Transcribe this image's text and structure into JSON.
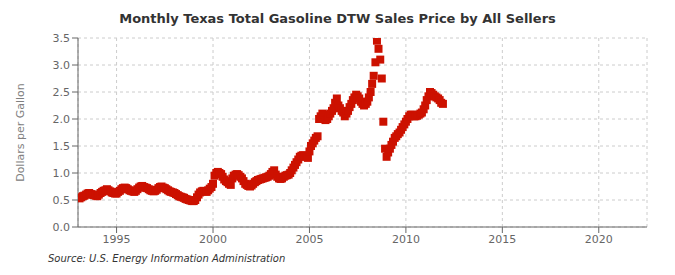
{
  "chart_data": {
    "type": "scatter",
    "title": "Monthly Texas Total Gasoline DTW Sales Price by All Sellers",
    "y_label": "Dollars per Gallon",
    "annotations": [
      "Source: U.S. Energy Information Administration"
    ],
    "color": "#cc1100",
    "marker": "square",
    "grid": true,
    "xlim": [
      1993.0,
      2022.5
    ],
    "ylim": [
      0.0,
      3.5
    ],
    "xticks": [
      1995,
      2000,
      2005,
      2010,
      2015,
      2020
    ],
    "yticks": [
      {
        "value": 0.0,
        "label": "0.0"
      },
      0.5,
      {
        "value": 1.0,
        "label": "1.0"
      },
      1.5,
      {
        "value": 2.0,
        "label": "2.0"
      },
      2.5,
      {
        "value": 3.0,
        "label": "3.0"
      },
      3.5
    ],
    "x": [
      1993.08,
      1993.17,
      1993.25,
      1993.33,
      1993.42,
      1993.5,
      1993.58,
      1993.67,
      1993.75,
      1993.83,
      1993.92,
      1994.0,
      1994.08,
      1994.17,
      1994.25,
      1994.33,
      1994.42,
      1994.5,
      1994.58,
      1994.67,
      1994.75,
      1994.83,
      1994.92,
      1995.0,
      1995.08,
      1995.17,
      1995.25,
      1995.33,
      1995.42,
      1995.5,
      1995.58,
      1995.67,
      1995.75,
      1995.83,
      1995.92,
      1996.0,
      1996.08,
      1996.17,
      1996.25,
      1996.33,
      1996.42,
      1996.5,
      1996.58,
      1996.67,
      1996.75,
      1996.83,
      1996.92,
      1997.0,
      1997.08,
      1997.17,
      1997.25,
      1997.33,
      1997.42,
      1997.5,
      1997.58,
      1997.67,
      1997.75,
      1997.83,
      1997.92,
      1998.0,
      1998.08,
      1998.17,
      1998.25,
      1998.33,
      1998.42,
      1998.5,
      1998.58,
      1998.67,
      1998.75,
      1998.83,
      1998.92,
      1999.0,
      1999.08,
      1999.17,
      1999.25,
      1999.33,
      1999.42,
      1999.5,
      1999.58,
      1999.67,
      1999.75,
      1999.83,
      1999.92,
      2000.0,
      2000.08,
      2000.17,
      2000.25,
      2000.33,
      2000.42,
      2000.5,
      2000.58,
      2000.67,
      2000.75,
      2000.83,
      2000.92,
      2001.0,
      2001.08,
      2001.17,
      2001.25,
      2001.33,
      2001.42,
      2001.5,
      2001.58,
      2001.67,
      2001.75,
      2001.83,
      2001.92,
      2002.0,
      2002.08,
      2002.17,
      2002.25,
      2002.33,
      2002.42,
      2002.5,
      2002.58,
      2002.67,
      2002.75,
      2002.83,
      2002.92,
      2003.0,
      2003.08,
      2003.17,
      2003.25,
      2003.33,
      2003.42,
      2003.5,
      2003.58,
      2003.67,
      2003.75,
      2003.83,
      2003.92,
      2004.0,
      2004.08,
      2004.17,
      2004.25,
      2004.33,
      2004.42,
      2004.5,
      2004.58,
      2004.67,
      2004.75,
      2004.83,
      2004.92,
      2005.0,
      2005.08,
      2005.17,
      2005.25,
      2005.33,
      2005.42,
      2005.5,
      2005.58,
      2005.67,
      2005.75,
      2005.83,
      2005.92,
      2006.0,
      2006.08,
      2006.17,
      2006.25,
      2006.33,
      2006.42,
      2006.5,
      2006.58,
      2006.67,
      2006.75,
      2006.83,
      2006.92,
      2007.0,
      2007.08,
      2007.17,
      2007.25,
      2007.33,
      2007.42,
      2007.5,
      2007.58,
      2007.67,
      2007.75,
      2007.83,
      2007.92,
      2008.0,
      2008.08,
      2008.17,
      2008.25,
      2008.33,
      2008.42,
      2008.5,
      2008.58,
      2008.67,
      2008.75,
      2008.83,
      2008.92,
      2009.0,
      2009.08,
      2009.17,
      2009.25,
      2009.33,
      2009.42,
      2009.5,
      2009.58,
      2009.67,
      2009.75,
      2009.83,
      2009.92,
      2010.0,
      2010.08,
      2010.17,
      2010.25,
      2010.33,
      2010.42,
      2010.5,
      2010.58,
      2010.67,
      2010.75,
      2010.83,
      2010.92,
      2011.0,
      2011.08,
      2011.17,
      2011.25,
      2011.33,
      2011.42,
      2011.5,
      2011.58,
      2011.67,
      2011.75,
      2011.83,
      2011.92
    ],
    "values": [
      0.53,
      0.55,
      0.57,
      0.58,
      0.6,
      0.62,
      0.63,
      0.61,
      0.6,
      0.59,
      0.58,
      0.57,
      0.6,
      0.63,
      0.65,
      0.67,
      0.68,
      0.7,
      0.68,
      0.66,
      0.64,
      0.63,
      0.62,
      0.62,
      0.65,
      0.67,
      0.7,
      0.72,
      0.73,
      0.72,
      0.7,
      0.68,
      0.67,
      0.66,
      0.65,
      0.67,
      0.7,
      0.73,
      0.75,
      0.76,
      0.74,
      0.73,
      0.72,
      0.7,
      0.68,
      0.67,
      0.66,
      0.67,
      0.69,
      0.72,
      0.74,
      0.75,
      0.73,
      0.72,
      0.7,
      0.68,
      0.66,
      0.65,
      0.64,
      0.63,
      0.61,
      0.59,
      0.57,
      0.56,
      0.55,
      0.54,
      0.52,
      0.51,
      0.5,
      0.49,
      0.48,
      0.48,
      0.5,
      0.55,
      0.6,
      0.64,
      0.66,
      0.67,
      0.66,
      0.65,
      0.68,
      0.71,
      0.74,
      0.8,
      0.95,
      1.0,
      1.02,
      1.0,
      0.98,
      0.93,
      0.88,
      0.85,
      0.83,
      0.8,
      0.78,
      0.9,
      0.95,
      0.97,
      0.98,
      0.96,
      0.93,
      0.9,
      0.85,
      0.8,
      0.78,
      0.76,
      0.75,
      0.77,
      0.8,
      0.83,
      0.85,
      0.87,
      0.88,
      0.89,
      0.9,
      0.91,
      0.92,
      0.93,
      0.95,
      0.98,
      1.02,
      1.05,
      0.97,
      0.93,
      0.9,
      0.89,
      0.9,
      0.93,
      0.95,
      0.96,
      0.97,
      1.0,
      1.05,
      1.1,
      1.15,
      1.2,
      1.25,
      1.3,
      1.32,
      1.33,
      1.32,
      1.3,
      1.28,
      1.4,
      1.5,
      1.55,
      1.6,
      1.65,
      1.68,
      2.0,
      2.05,
      2.1,
      2.08,
      1.98,
      2.0,
      2.05,
      2.1,
      2.15,
      2.2,
      2.3,
      2.38,
      2.25,
      2.2,
      2.15,
      2.12,
      2.05,
      2.1,
      2.15,
      2.22,
      2.28,
      2.35,
      2.4,
      2.45,
      2.42,
      2.38,
      2.32,
      2.28,
      2.25,
      2.28,
      2.32,
      2.4,
      2.5,
      2.65,
      2.8,
      3.05,
      3.45,
      3.3,
      3.1,
      2.75,
      1.95,
      1.45,
      1.3,
      1.38,
      1.45,
      1.52,
      1.58,
      1.65,
      1.68,
      1.72,
      1.75,
      1.8,
      1.85,
      1.9,
      1.95,
      2.0,
      2.05,
      2.08,
      2.08,
      2.05,
      2.05,
      2.06,
      2.08,
      2.1,
      2.12,
      2.18,
      2.25,
      2.35,
      2.42,
      2.5,
      2.48,
      2.45,
      2.42,
      2.4,
      2.38,
      2.35,
      2.3,
      2.28
    ]
  }
}
